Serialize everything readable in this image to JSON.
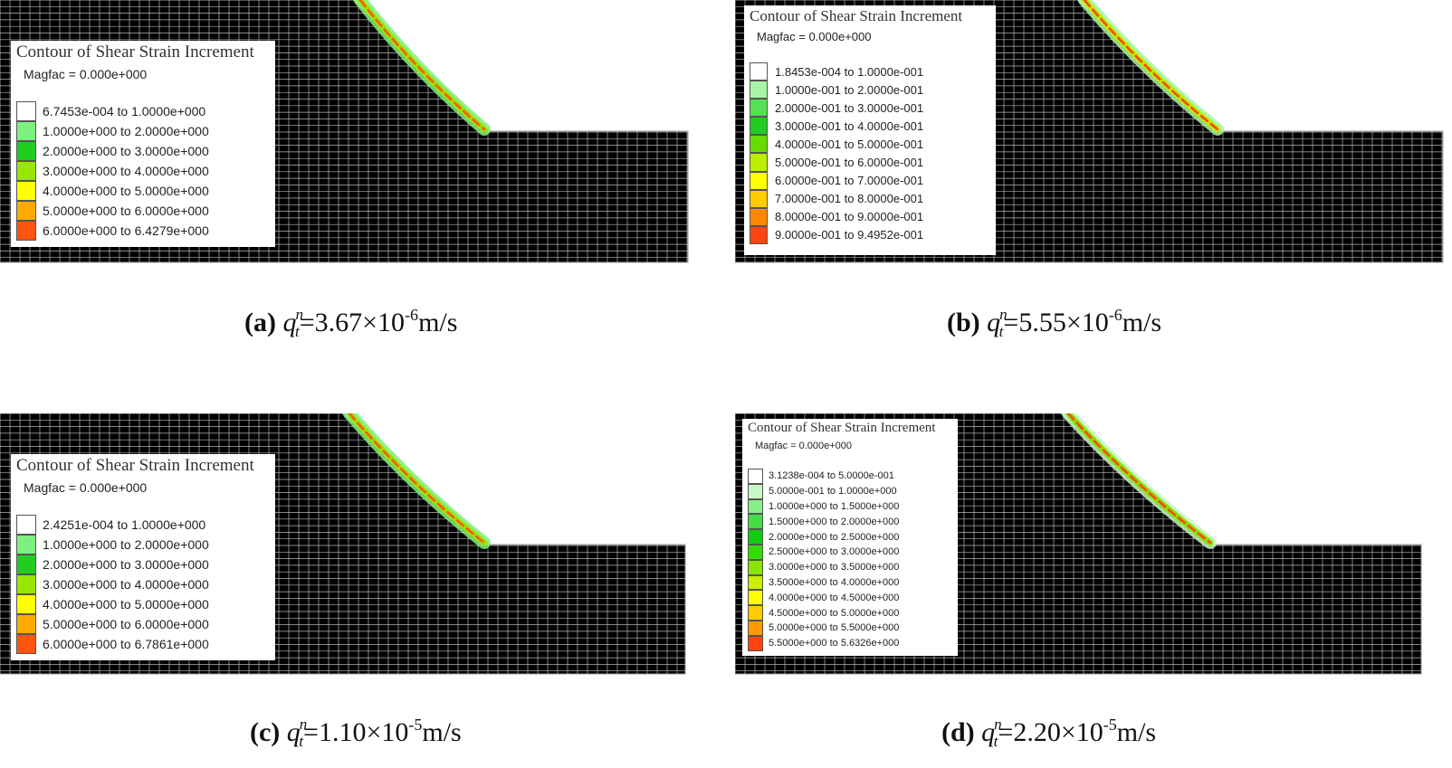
{
  "panels": [
    {
      "id": "a",
      "legend": {
        "title": "Contour of Shear Strain Increment",
        "magfac": "Magfac =  0.000e+000",
        "items": [
          {
            "label": "6.7453e-004 to  1.0000e+000",
            "color": "#ffffff"
          },
          {
            "label": "1.0000e+000 to  2.0000e+000",
            "color": "#7ff07f"
          },
          {
            "label": "2.0000e+000 to  3.0000e+000",
            "color": "#22cc22"
          },
          {
            "label": "3.0000e+000 to  4.0000e+000",
            "color": "#99e600"
          },
          {
            "label": "4.0000e+000 to  5.0000e+000",
            "color": "#ffff00"
          },
          {
            "label": "5.0000e+000 to  6.0000e+000",
            "color": "#ffaa00"
          },
          {
            "label": "6.0000e+000 to  6.4279e+000",
            "color": "#ff5511"
          }
        ]
      },
      "caption": {
        "label": "(a)",
        "q": "q",
        "sup_n": "n",
        "sub_t": "t",
        "eq": "=3.67×10",
        "exp": "-6",
        "unit": "m/s"
      }
    },
    {
      "id": "b",
      "legend": {
        "title": "Contour of Shear Strain Increment",
        "magfac": "Magfac =  0.000e+000",
        "items": [
          {
            "label": "1.8453e-004 to  1.0000e-001",
            "color": "#ffffff"
          },
          {
            "label": "1.0000e-001 to  2.0000e-001",
            "color": "#a8f5a8"
          },
          {
            "label": "2.0000e-001 to  3.0000e-001",
            "color": "#55e055"
          },
          {
            "label": "3.0000e-001 to  4.0000e-001",
            "color": "#22cc22"
          },
          {
            "label": "4.0000e-001 to  5.0000e-001",
            "color": "#66dd00"
          },
          {
            "label": "5.0000e-001 to  6.0000e-001",
            "color": "#bbee00"
          },
          {
            "label": "6.0000e-001 to  7.0000e-001",
            "color": "#ffff00"
          },
          {
            "label": "7.0000e-001 to  8.0000e-001",
            "color": "#ffcc00"
          },
          {
            "label": "8.0000e-001 to  9.0000e-001",
            "color": "#ff8800"
          },
          {
            "label": "9.0000e-001 to  9.4952e-001",
            "color": "#ff4411"
          }
        ]
      },
      "caption": {
        "label": "(b)",
        "q": "q",
        "sup_n": "n",
        "sub_t": "t",
        "eq": "=5.55×10",
        "exp": "-6",
        "unit": "m/s"
      }
    },
    {
      "id": "c",
      "legend": {
        "title": "Contour of Shear Strain Increment",
        "magfac": "Magfac =  0.000e+000",
        "items": [
          {
            "label": "2.4251e-004 to  1.0000e+000",
            "color": "#ffffff"
          },
          {
            "label": "1.0000e+000 to  2.0000e+000",
            "color": "#7ff07f"
          },
          {
            "label": "2.0000e+000 to  3.0000e+000",
            "color": "#22cc22"
          },
          {
            "label": "3.0000e+000 to  4.0000e+000",
            "color": "#99e600"
          },
          {
            "label": "4.0000e+000 to  5.0000e+000",
            "color": "#ffff00"
          },
          {
            "label": "5.0000e+000 to  6.0000e+000",
            "color": "#ffaa00"
          },
          {
            "label": "6.0000e+000 to  6.7861e+000",
            "color": "#ff5511"
          }
        ]
      },
      "caption": {
        "label": "(c)",
        "q": "q",
        "sup_n": "n",
        "sub_t": "t",
        "eq": "=1.10×10",
        "exp": "-5",
        "unit": "m/s"
      }
    },
    {
      "id": "d",
      "legend": {
        "title": "Contour of Shear Strain Increment",
        "magfac": "Magfac =  0.000e+000",
        "items": [
          {
            "label": "3.1238e-004 to  5.0000e-001",
            "color": "#ffffff"
          },
          {
            "label": "5.0000e-001 to  1.0000e+000",
            "color": "#c8f7c8"
          },
          {
            "label": "1.0000e+000 to  1.5000e+000",
            "color": "#88ee88"
          },
          {
            "label": "1.5000e+000 to  2.0000e+000",
            "color": "#44dd44"
          },
          {
            "label": "2.0000e+000 to  2.5000e+000",
            "color": "#11cc11"
          },
          {
            "label": "2.5000e+000 to  3.0000e+000",
            "color": "#33dd00"
          },
          {
            "label": "3.0000e+000 to  3.5000e+000",
            "color": "#88e600"
          },
          {
            "label": "3.5000e+000 to  4.0000e+000",
            "color": "#ccee00"
          },
          {
            "label": "4.0000e+000 to  4.5000e+000",
            "color": "#ffff00"
          },
          {
            "label": "4.5000e+000 to  5.0000e+000",
            "color": "#ffcc00"
          },
          {
            "label": "5.0000e+000 to  5.5000e+000",
            "color": "#ff9900"
          },
          {
            "label": "5.5000e+000 to  5.6326e+000",
            "color": "#ff4411"
          }
        ]
      },
      "caption": {
        "label": "(d)",
        "q": "q",
        "sup_n": "n",
        "sub_t": "t",
        "eq": "=2.20×10",
        "exp": "-5",
        "unit": "m/s"
      }
    }
  ]
}
